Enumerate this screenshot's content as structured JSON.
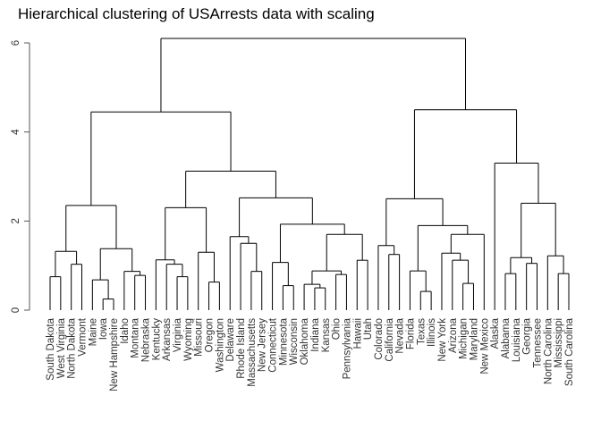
{
  "chart_data": {
    "type": "dendrogram",
    "title": "Hierarchical clustering of USArrests data with scaling",
    "ylim": [
      0,
      6.2
    ],
    "y_ticks": [
      0,
      2,
      4,
      6
    ],
    "leaves": [
      "South Dakota",
      "West Virginia",
      "North Dakota",
      "Vermont",
      "Maine",
      "Iowa",
      "New Hampshire",
      "Idaho",
      "Montana",
      "Nebraska",
      "Kentucky",
      "Arkansas",
      "Virginia",
      "Wyoming",
      "Missouri",
      "Oregon",
      "Washington",
      "Delaware",
      "Rhode Island",
      "Massachusetts",
      "New Jersey",
      "Connecticut",
      "Minnesota",
      "Wisconsin",
      "Oklahoma",
      "Indiana",
      "Kansas",
      "Ohio",
      "Pennsylvania",
      "Hawaii",
      "Utah",
      "Colorado",
      "California",
      "Nevada",
      "Florida",
      "Texas",
      "Illinois",
      "New York",
      "Arizona",
      "Michigan",
      "Maryland",
      "New Mexico",
      "Alaska",
      "Alabama",
      "Louisiana",
      "Georgia",
      "Tennessee",
      "North Carolina",
      "Mississippi",
      "South Carolina"
    ],
    "tree": [
      6.1,
      [
        4.45,
        [
          2.35,
          [
            1.32,
            [
              0.75,
              "South Dakota",
              "West Virginia"
            ],
            [
              1.03,
              "North Dakota",
              "Vermont"
            ]
          ],
          [
            1.38,
            [
              0.68,
              "Maine",
              [
                0.25,
                "Iowa",
                "New Hampshire"
              ]
            ],
            [
              0.87,
              "Idaho",
              [
                0.78,
                "Montana",
                "Nebraska"
              ]
            ]
          ]
        ],
        [
          3.12,
          [
            2.3,
            [
              1.13,
              "Kentucky",
              [
                1.03,
                "Arkansas",
                [
                  0.75,
                  "Virginia",
                  "Wyoming"
                ]
              ]
            ],
            [
              1.3,
              "Missouri",
              [
                0.63,
                "Oregon",
                "Washington"
              ]
            ]
          ],
          [
            2.52,
            [
              1.65,
              "Delaware",
              [
                1.5,
                "Rhode Island",
                [
                  0.87,
                  "Massachusetts",
                  "New Jersey"
                ]
              ]
            ],
            [
              1.93,
              [
                1.07,
                "Connecticut",
                [
                  0.55,
                  "Minnesota",
                  "Wisconsin"
                ]
              ],
              [
                1.7,
                [
                  0.88,
                  [
                    0.58,
                    "Oklahoma",
                    [
                      0.5,
                      "Indiana",
                      "Kansas"
                    ]
                  ],
                  [
                    0.8,
                    "Ohio",
                    "Pennsylvania"
                  ]
                ],
                [
                  1.12,
                  "Hawaii",
                  "Utah"
                ]
              ]
            ]
          ]
        ]
      ],
      [
        4.5,
        [
          2.5,
          [
            1.45,
            "Colorado",
            [
              1.25,
              "California",
              "Nevada"
            ]
          ],
          [
            1.9,
            [
              0.88,
              "Florida",
              [
                0.42,
                "Texas",
                "Illinois"
              ]
            ],
            [
              1.7,
              [
                1.28,
                "New York",
                [
                  1.12,
                  "Arizona",
                  [
                    0.6,
                    "Michigan",
                    "Maryland"
                  ]
                ]
              ],
              "New Mexico"
            ]
          ]
        ],
        [
          3.3,
          "Alaska",
          [
            2.4,
            [
              1.18,
              [
                0.82,
                "Alabama",
                "Louisiana"
              ],
              [
                1.05,
                "Georgia",
                "Tennessee"
              ]
            ],
            [
              1.22,
              "North Carolina",
              [
                0.82,
                "Mississippi",
                "South Carolina"
              ]
            ]
          ]
        ]
      ]
    ]
  }
}
